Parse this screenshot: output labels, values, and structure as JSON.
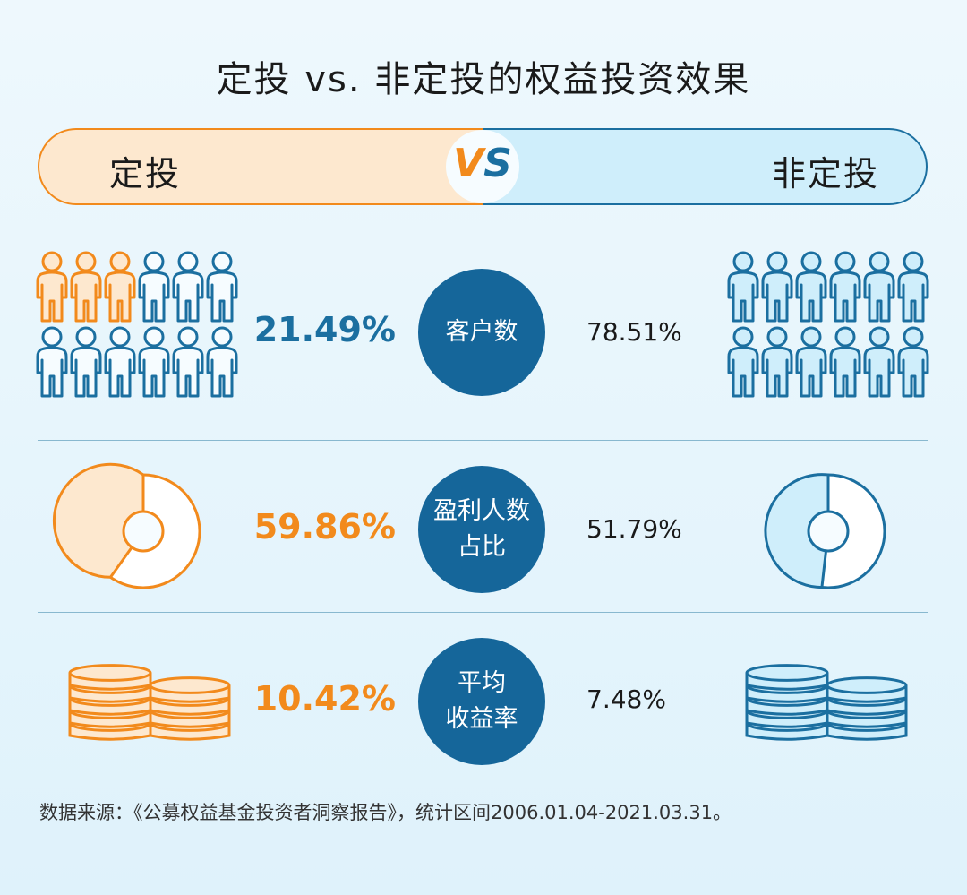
{
  "title": "定投 vs. 非定投的权益投资效果",
  "vs_bar": {
    "left_label": "定投",
    "vs_v": "V",
    "vs_s": "S",
    "right_label": "非定投"
  },
  "colors": {
    "orange": "#f28a1c",
    "blue": "#1b6fa0",
    "circle_blue": "#15669a",
    "light_orange": "#fde8cf",
    "light_blue": "#cfeefb"
  },
  "chart_data": {
    "type": "table",
    "series": [
      {
        "name": "定投",
        "values": [
          "21.49%",
          "59.86%",
          "10.42%"
        ]
      },
      {
        "name": "非定投",
        "values": [
          "78.51%",
          "51.79%",
          "7.48%"
        ]
      }
    ],
    "metrics": [
      {
        "label_line1": "客户数",
        "label_line2": "",
        "left": "21.49%",
        "right": "78.51%",
        "left_value": 21.49,
        "right_value": 78.51,
        "left_color": "#1b6fa0"
      },
      {
        "label_line1": "盈利人数",
        "label_line2": "占比",
        "left": "59.86%",
        "right": "51.79%",
        "left_value": 59.86,
        "right_value": 51.79,
        "left_color": "#f28a1c"
      },
      {
        "label_line1": "平均",
        "label_line2": "收益率",
        "left": "10.42%",
        "right": "7.48%",
        "left_value": 10.42,
        "right_value": 7.48,
        "left_color": "#f28a1c"
      }
    ],
    "people_icons": {
      "total": 12,
      "left_highlighted": 3
    }
  },
  "source": "数据来源：《公募权益基金投资者洞察报告》，统计区间2006.01.04-2021.03.31。"
}
